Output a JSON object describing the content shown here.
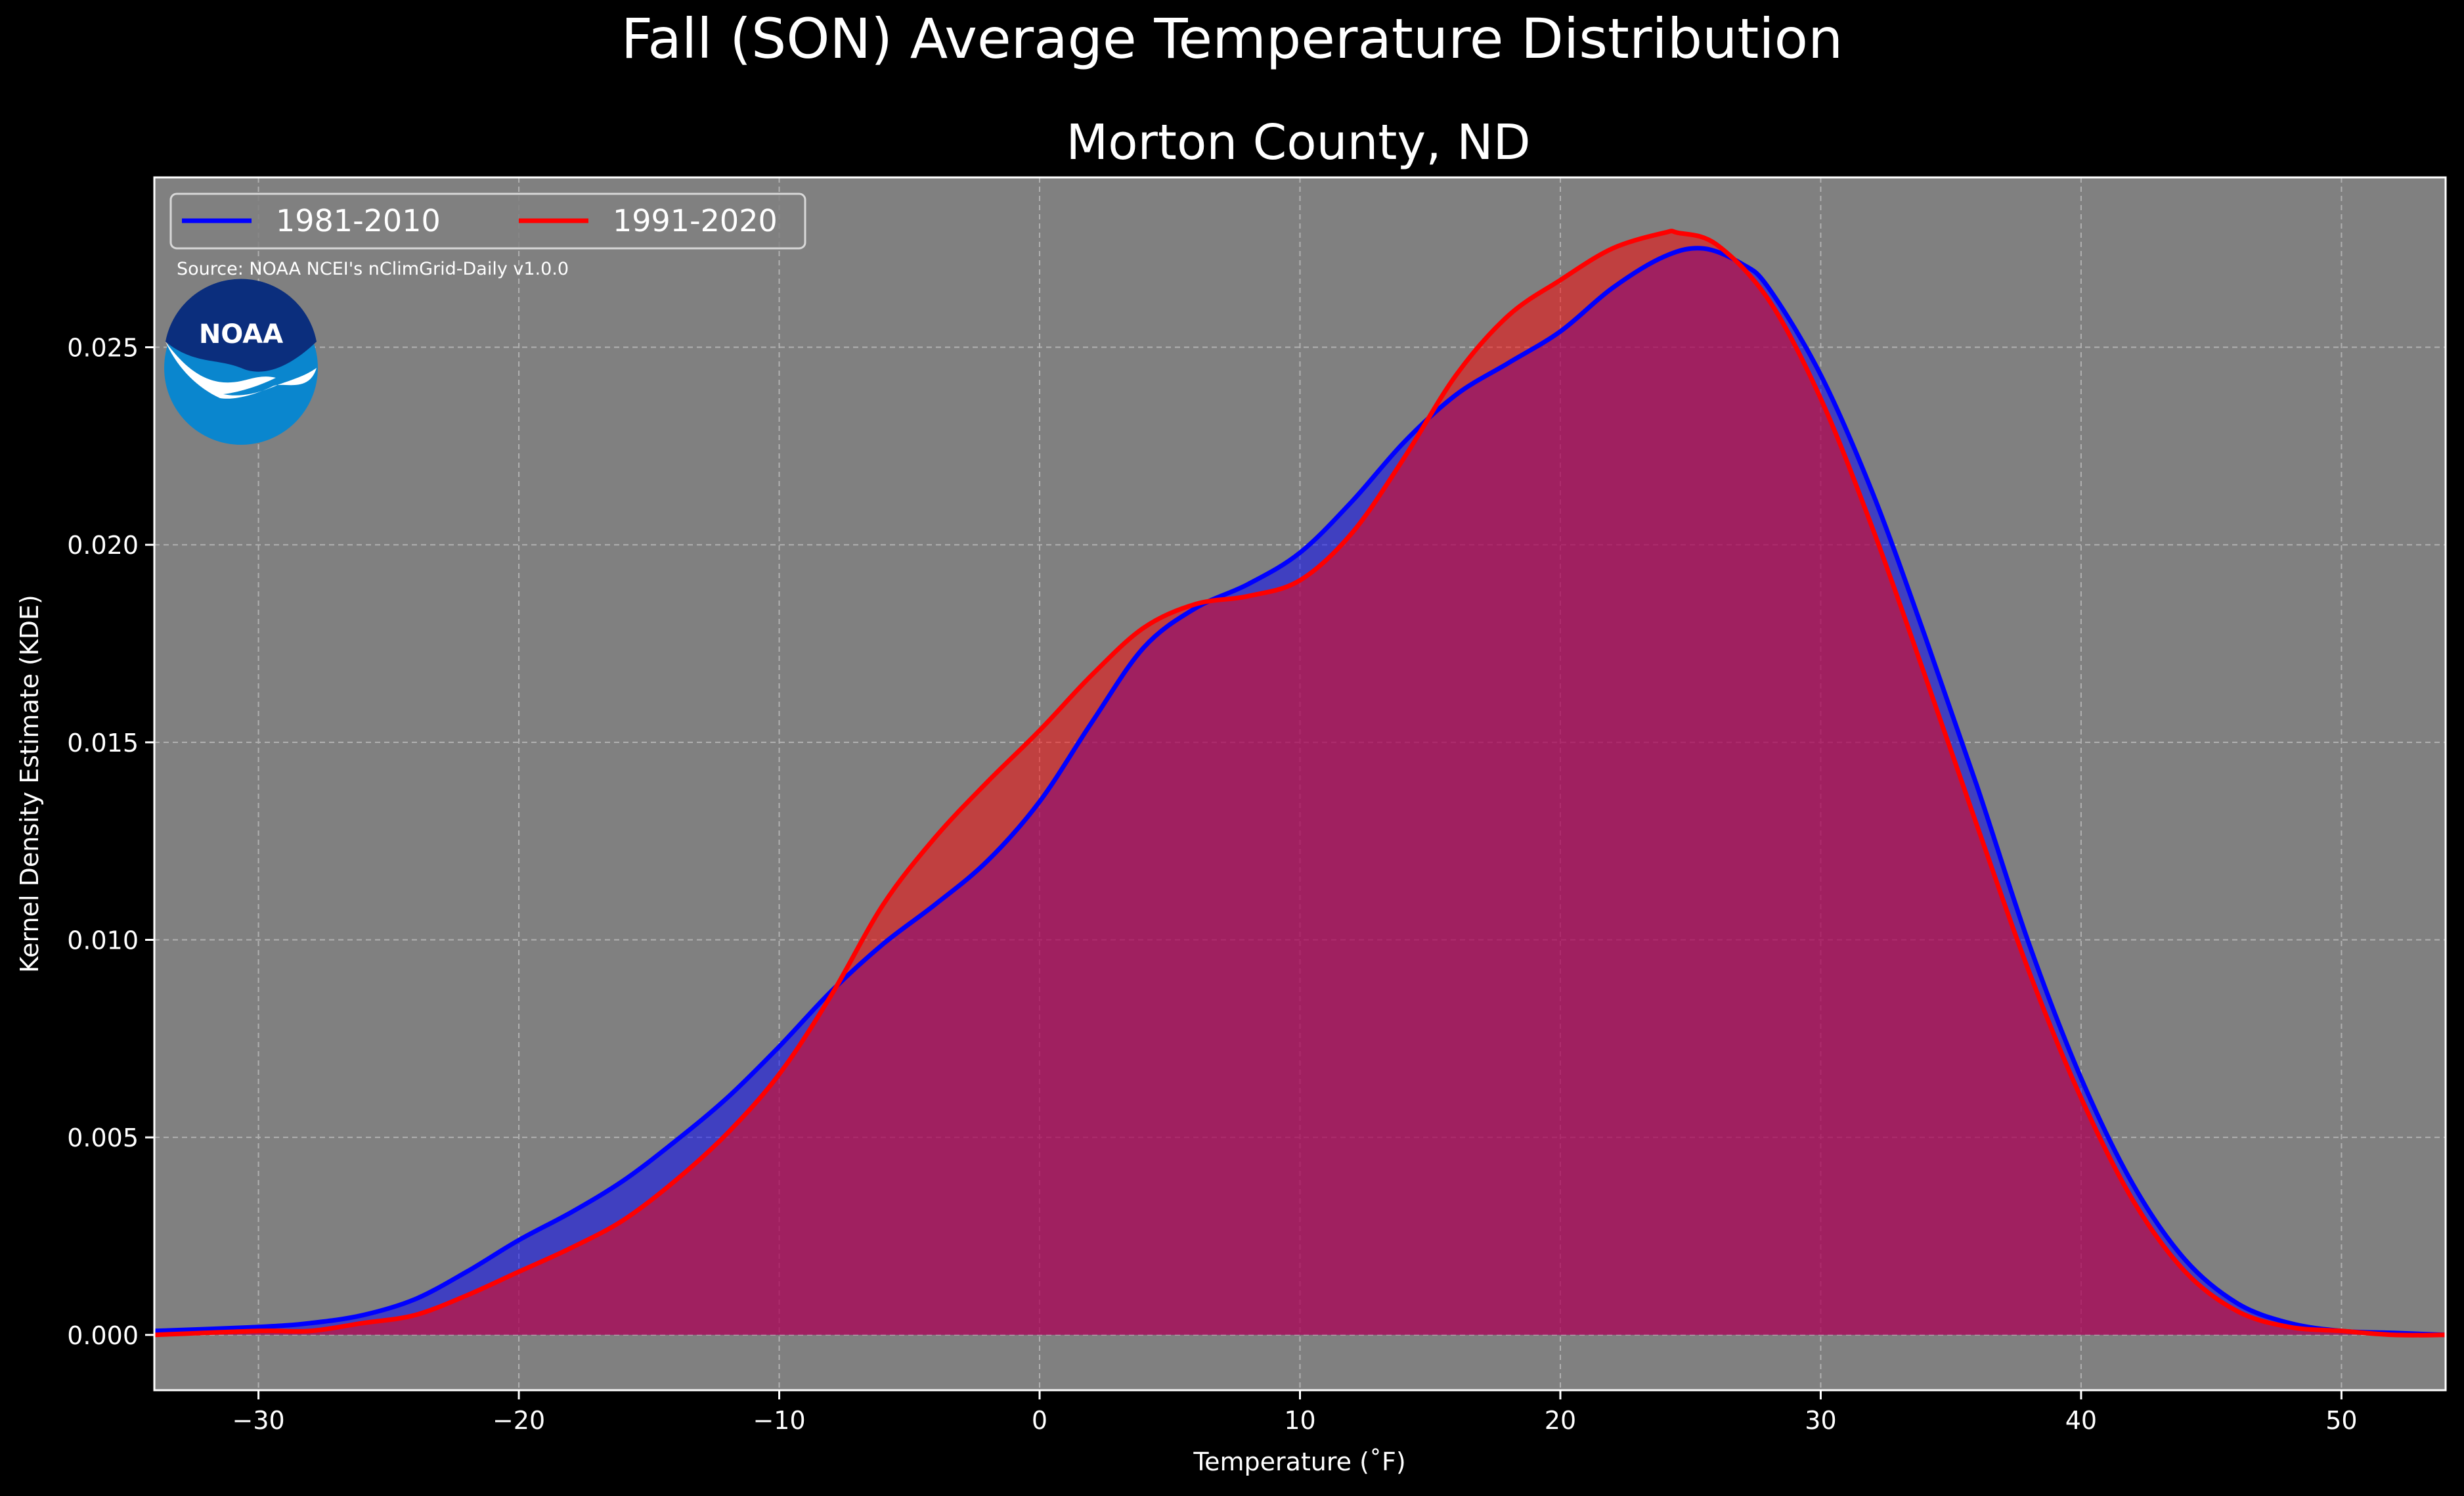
{
  "figure": {
    "suptitle": "Fall (SON) Average Temperature Distribution",
    "source_note": "Source: NOAA NCEI's nClimGrid-Daily v1.0.0",
    "logo_text": "NOAA",
    "logo_icon": "noaa-logo-icon"
  },
  "colors": {
    "background": "#000000",
    "plot_background": "#808080",
    "series_1981": "#0000ff",
    "series_1991": "#ff0000",
    "text": "#ffffff"
  },
  "chart_data": {
    "type": "area",
    "title": "Morton County, ND",
    "xlabel": "Temperature (˚F)",
    "ylabel": "Kernel Density Estimate (KDE)",
    "xlim": [
      -34,
      54
    ],
    "ylim": [
      -0.0014,
      0.0293
    ],
    "xticks": [
      -30,
      -20,
      -10,
      0,
      10,
      20,
      30,
      40,
      50
    ],
    "yticks": [
      0.0,
      0.005,
      0.01,
      0.015,
      0.02,
      0.025
    ],
    "xtick_labels": [
      "−30",
      "−20",
      "−10",
      "0",
      "10",
      "20",
      "30",
      "40",
      "50"
    ],
    "ytick_labels": [
      "0.000",
      "0.005",
      "0.010",
      "0.015",
      "0.020",
      "0.025"
    ],
    "grid": true,
    "legend_position": "top-left",
    "series": [
      {
        "name": "1981-2010",
        "color": "#0000ff",
        "x": [
          -34,
          -30,
          -28,
          -26,
          -24,
          -22,
          -20,
          -18,
          -16,
          -14,
          -12,
          -10,
          -8,
          -6,
          -4,
          -2,
          0,
          2,
          4,
          6,
          8,
          10,
          12,
          14,
          16,
          18,
          20,
          22,
          24,
          25.5,
          27,
          28,
          30,
          32,
          34,
          36,
          38,
          40,
          42,
          44,
          46,
          48,
          50,
          52,
          54
        ],
        "y": [
          0.0001,
          0.0002,
          0.0003,
          0.0005,
          0.0009,
          0.0016,
          0.0024,
          0.0031,
          0.0039,
          0.0049,
          0.006,
          0.0073,
          0.0087,
          0.0099,
          0.0109,
          0.012,
          0.0135,
          0.0155,
          0.0174,
          0.0184,
          0.019,
          0.0198,
          0.0211,
          0.0226,
          0.0238,
          0.0246,
          0.0254,
          0.0265,
          0.0273,
          0.0275,
          0.0271,
          0.0265,
          0.0243,
          0.0213,
          0.0177,
          0.0139,
          0.0099,
          0.0065,
          0.0038,
          0.0019,
          0.0008,
          0.0003,
          0.0001,
          5e-05,
          0.0
        ]
      },
      {
        "name": "1991-2020",
        "color": "#ff0000",
        "x": [
          -34,
          -30,
          -28,
          -26,
          -24,
          -22,
          -20,
          -18,
          -16,
          -14,
          -12,
          -10,
          -8,
          -6,
          -4,
          -2,
          0,
          2,
          4,
          6,
          8,
          10,
          12,
          14,
          16,
          18,
          20,
          22,
          24,
          24.5,
          26,
          28,
          30,
          32,
          34,
          36,
          38,
          40,
          42,
          44,
          46,
          48,
          50,
          52,
          54
        ],
        "y": [
          0.0,
          0.0001,
          0.0001,
          0.0003,
          0.0005,
          0.001,
          0.0016,
          0.0022,
          0.0029,
          0.0039,
          0.0051,
          0.0066,
          0.0086,
          0.0109,
          0.0126,
          0.014,
          0.0153,
          0.0167,
          0.0179,
          0.0185,
          0.0187,
          0.0191,
          0.0203,
          0.0222,
          0.0243,
          0.0258,
          0.0267,
          0.0275,
          0.0279,
          0.0279,
          0.0276,
          0.0262,
          0.0237,
          0.0204,
          0.0167,
          0.0129,
          0.0092,
          0.006,
          0.0034,
          0.0016,
          0.0006,
          0.0002,
          0.0001,
          0.0,
          0.0
        ]
      }
    ]
  }
}
